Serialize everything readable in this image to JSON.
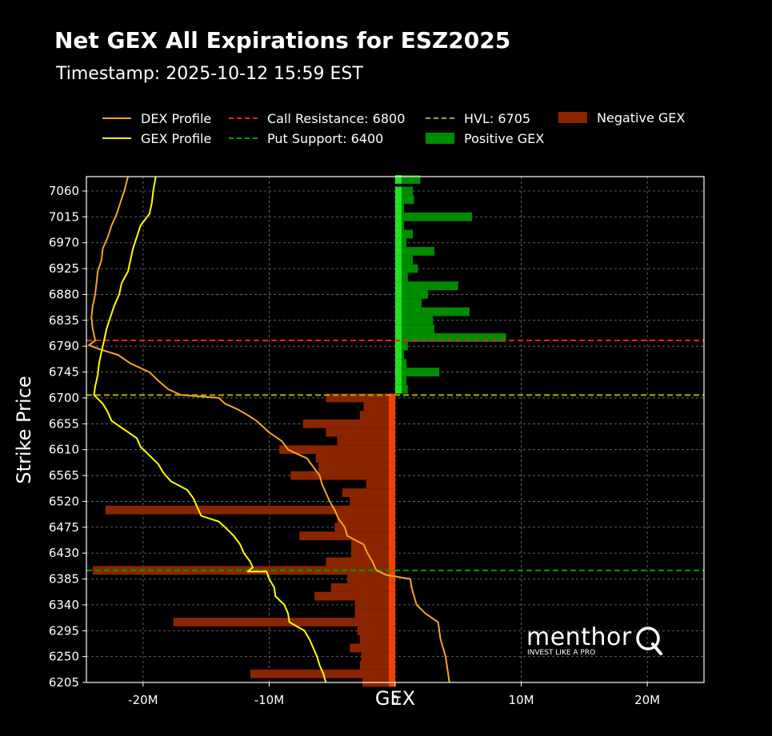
{
  "header": {
    "title": "Net GEX All Expirations for ESZ2025",
    "subtitle": "Timestamp: 2025-10-12 15:59 EST"
  },
  "legend": [
    {
      "label": "DEX Profile",
      "kind": "line",
      "color": "#f5a623",
      "dash": false
    },
    {
      "label": "GEX Profile",
      "kind": "line",
      "color": "#ffff00",
      "dash": false
    },
    {
      "label": "Call Resistance: 6800",
      "kind": "line",
      "color": "#ff2020",
      "dash": true
    },
    {
      "label": "Put Support: 6400",
      "kind": "line",
      "color": "#00a000",
      "dash": true
    },
    {
      "label": "HVL: 6705",
      "kind": "line",
      "color": "#b0b000",
      "dash": true
    },
    {
      "label": "Positive GEX",
      "kind": "patch",
      "color": "#008c00"
    },
    {
      "label": "Negative GEX",
      "kind": "patch",
      "color": "#8b2500"
    }
  ],
  "brand": {
    "name": "menthor",
    "letter": "Q",
    "tagline": "INVEST LIKE A PRO"
  },
  "chart_data": {
    "type": "bar",
    "orientation": "horizontal",
    "xlabel": "GEX",
    "ylabel": "Strike Price",
    "xlim": [
      -24500000,
      24500000
    ],
    "ylim": [
      6205,
      7085
    ],
    "x_ticks": [
      -20000000,
      -10000000,
      0,
      10000000,
      20000000
    ],
    "x_tick_labels": [
      "-20M",
      "-10M",
      "0",
      "10M",
      "20M"
    ],
    "y_ticks": [
      6205,
      6250,
      6295,
      6340,
      6385,
      6430,
      6475,
      6520,
      6565,
      6610,
      6655,
      6700,
      6745,
      6790,
      6835,
      6880,
      6925,
      6970,
      7015,
      7060
    ],
    "grid": true,
    "colors": {
      "positive": "#008c00",
      "negative": "#8b2500",
      "near_positive": "#22ee22",
      "near_negative": "#ff4500",
      "dex": "#f5a623",
      "gex": "#ffff00"
    },
    "levels": [
      {
        "name": "Call Resistance",
        "value": 6800,
        "color": "#ff2020"
      },
      {
        "name": "Put Support",
        "value": 6400,
        "color": "#00a000"
      },
      {
        "name": "HVL",
        "value": 6705,
        "color": "#b0b000"
      }
    ],
    "series": [
      {
        "name": "Positive GEX",
        "points": [
          [
            7080,
            2000000
          ],
          [
            7060,
            1400000
          ],
          [
            7045,
            1500000
          ],
          [
            7030,
            700000
          ],
          [
            7015,
            6100000
          ],
          [
            7000,
            700000
          ],
          [
            6985,
            1400000
          ],
          [
            6970,
            900000
          ],
          [
            6955,
            3100000
          ],
          [
            6940,
            1400000
          ],
          [
            6925,
            1800000
          ],
          [
            6910,
            1000000
          ],
          [
            6895,
            5000000
          ],
          [
            6880,
            2600000
          ],
          [
            6865,
            2100000
          ],
          [
            6850,
            5900000
          ],
          [
            6835,
            3000000
          ],
          [
            6820,
            3100000
          ],
          [
            6805,
            8800000
          ],
          [
            6790,
            1000000
          ],
          [
            6775,
            700000
          ],
          [
            6760,
            900000
          ],
          [
            6745,
            3500000
          ],
          [
            6730,
            900000
          ],
          [
            6715,
            1000000
          ]
        ]
      },
      {
        "name": "Negative GEX",
        "points": [
          [
            6700,
            -5500000
          ],
          [
            6685,
            -2500000
          ],
          [
            6670,
            -2800000
          ],
          [
            6655,
            -7300000
          ],
          [
            6640,
            -5500000
          ],
          [
            6625,
            -4600000
          ],
          [
            6610,
            -9200000
          ],
          [
            6595,
            -6300000
          ],
          [
            6580,
            -6100000
          ],
          [
            6565,
            -8300000
          ],
          [
            6550,
            -2300000
          ],
          [
            6535,
            -4200000
          ],
          [
            6520,
            -3600000
          ],
          [
            6505,
            -23000000
          ],
          [
            6490,
            -4600000
          ],
          [
            6475,
            -4800000
          ],
          [
            6460,
            -7600000
          ],
          [
            6445,
            -3500000
          ],
          [
            6430,
            -3500000
          ],
          [
            6415,
            -5500000
          ],
          [
            6400,
            -24000000
          ],
          [
            6385,
            -3800000
          ],
          [
            6370,
            -5100000
          ],
          [
            6355,
            -6400000
          ],
          [
            6340,
            -3200000
          ],
          [
            6325,
            -3200000
          ],
          [
            6310,
            -17600000
          ],
          [
            6295,
            -3000000
          ],
          [
            6280,
            -2800000
          ],
          [
            6265,
            -3600000
          ],
          [
            6250,
            -2700000
          ],
          [
            6235,
            -2800000
          ],
          [
            6220,
            -11500000
          ],
          [
            6205,
            -2600000
          ]
        ]
      },
      {
        "name": "DEX Profile",
        "points": [
          [
            7085,
            -21200000
          ],
          [
            7060,
            -21500000
          ],
          [
            7040,
            -21800000
          ],
          [
            7020,
            -22100000
          ],
          [
            7000,
            -22500000
          ],
          [
            6980,
            -22800000
          ],
          [
            6960,
            -23200000
          ],
          [
            6940,
            -23300000
          ],
          [
            6920,
            -23600000
          ],
          [
            6900,
            -23700000
          ],
          [
            6880,
            -23800000
          ],
          [
            6860,
            -24000000
          ],
          [
            6840,
            -24100000
          ],
          [
            6820,
            -24000000
          ],
          [
            6800,
            -23800000
          ],
          [
            6792,
            -24300000
          ],
          [
            6785,
            -23500000
          ],
          [
            6775,
            -22000000
          ],
          [
            6760,
            -21000000
          ],
          [
            6745,
            -19500000
          ],
          [
            6730,
            -18800000
          ],
          [
            6715,
            -18000000
          ],
          [
            6705,
            -17000000
          ],
          [
            6700,
            -14000000
          ],
          [
            6690,
            -13500000
          ],
          [
            6680,
            -12500000
          ],
          [
            6670,
            -11700000
          ],
          [
            6660,
            -11000000
          ],
          [
            6650,
            -10500000
          ],
          [
            6640,
            -10000000
          ],
          [
            6625,
            -9000000
          ],
          [
            6610,
            -8500000
          ],
          [
            6595,
            -7000000
          ],
          [
            6580,
            -6500000
          ],
          [
            6565,
            -6000000
          ],
          [
            6550,
            -5800000
          ],
          [
            6535,
            -5500000
          ],
          [
            6520,
            -5200000
          ],
          [
            6505,
            -4800000
          ],
          [
            6490,
            -4500000
          ],
          [
            6475,
            -4000000
          ],
          [
            6460,
            -3800000
          ],
          [
            6445,
            -2500000
          ],
          [
            6430,
            -2200000
          ],
          [
            6415,
            -1800000
          ],
          [
            6400,
            -1500000
          ],
          [
            6392,
            -700000
          ],
          [
            6385,
            1200000
          ],
          [
            6370,
            1300000
          ],
          [
            6355,
            1500000
          ],
          [
            6340,
            1700000
          ],
          [
            6325,
            2400000
          ],
          [
            6310,
            3400000
          ],
          [
            6295,
            3500000
          ],
          [
            6280,
            3600000
          ],
          [
            6265,
            3800000
          ],
          [
            6250,
            4000000
          ],
          [
            6235,
            4100000
          ],
          [
            6220,
            4200000
          ],
          [
            6205,
            4300000
          ]
        ]
      },
      {
        "name": "GEX Profile",
        "points": [
          [
            7085,
            -19000000
          ],
          [
            7060,
            -19200000
          ],
          [
            7040,
            -19300000
          ],
          [
            7020,
            -19500000
          ],
          [
            7000,
            -20200000
          ],
          [
            6980,
            -20500000
          ],
          [
            6960,
            -20800000
          ],
          [
            6940,
            -21000000
          ],
          [
            6920,
            -21200000
          ],
          [
            6900,
            -21700000
          ],
          [
            6880,
            -21900000
          ],
          [
            6860,
            -22300000
          ],
          [
            6840,
            -22600000
          ],
          [
            6820,
            -22900000
          ],
          [
            6800,
            -23100000
          ],
          [
            6780,
            -23300000
          ],
          [
            6760,
            -23500000
          ],
          [
            6740,
            -23600000
          ],
          [
            6720,
            -23800000
          ],
          [
            6705,
            -23900000
          ],
          [
            6690,
            -23200000
          ],
          [
            6675,
            -22800000
          ],
          [
            6660,
            -22500000
          ],
          [
            6645,
            -21500000
          ],
          [
            6630,
            -20500000
          ],
          [
            6615,
            -20200000
          ],
          [
            6600,
            -19500000
          ],
          [
            6585,
            -18800000
          ],
          [
            6570,
            -18400000
          ],
          [
            6555,
            -17800000
          ],
          [
            6540,
            -16500000
          ],
          [
            6525,
            -16000000
          ],
          [
            6510,
            -15700000
          ],
          [
            6495,
            -15400000
          ],
          [
            6485,
            -14000000
          ],
          [
            6475,
            -13500000
          ],
          [
            6460,
            -12800000
          ],
          [
            6445,
            -12300000
          ],
          [
            6430,
            -12000000
          ],
          [
            6415,
            -11500000
          ],
          [
            6405,
            -11300000
          ],
          [
            6398,
            -11700000
          ],
          [
            6398,
            -10200000
          ],
          [
            6385,
            -10000000
          ],
          [
            6370,
            -9600000
          ],
          [
            6355,
            -9500000
          ],
          [
            6340,
            -8800000
          ],
          [
            6325,
            -8500000
          ],
          [
            6310,
            -8400000
          ],
          [
            6295,
            -7200000
          ],
          [
            6280,
            -6800000
          ],
          [
            6265,
            -6500000
          ],
          [
            6250,
            -6200000
          ],
          [
            6235,
            -6000000
          ],
          [
            6220,
            -5700000
          ],
          [
            6205,
            -5500000
          ]
        ]
      }
    ]
  }
}
